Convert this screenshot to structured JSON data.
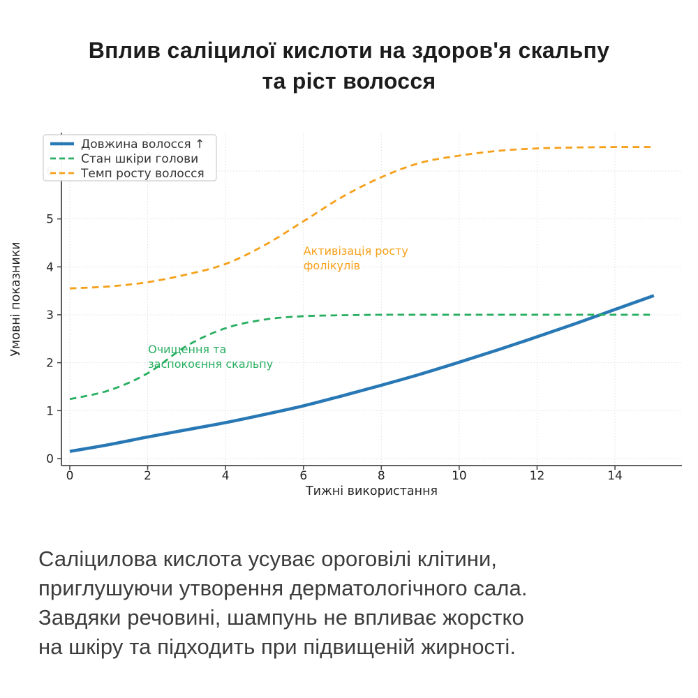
{
  "title": {
    "lines": [
      "Вплив саліцилої кислоти на здоров'я скальпу",
      "та ріст волосся"
    ]
  },
  "description": {
    "lines": [
      "Саліцилова кислота усуває ороговілі клітини,",
      "приглушуючи утворення дерматологічного сала.",
      "Завдяки речовині, шампунь не впливає жорстко",
      "на шкіру та підходить при підвищеній жирності."
    ]
  },
  "chart_data": {
    "type": "line",
    "x": [
      0,
      1,
      2,
      3,
      4,
      5,
      6,
      7,
      8,
      9,
      10,
      11,
      12,
      13,
      14,
      15
    ],
    "series": [
      {
        "name": "Довжина волосся ↑",
        "color": "#2878b5",
        "style": "solid",
        "values": [
          0.15,
          0.29,
          0.45,
          0.6,
          0.75,
          0.92,
          1.1,
          1.31,
          1.53,
          1.76,
          2.01,
          2.27,
          2.54,
          2.82,
          3.11,
          3.4
        ]
      },
      {
        "name": "Стан шкіри голови",
        "color": "#27ae60",
        "style": "dashed",
        "values": [
          1.24,
          1.42,
          1.78,
          2.35,
          2.72,
          2.9,
          2.97,
          2.99,
          3.0,
          3.0,
          3.0,
          3.0,
          3.0,
          3.0,
          3.0,
          3.0
        ]
      },
      {
        "name": "Темп росту волосся",
        "color": "#f6a01a",
        "style": "dashed",
        "values": [
          3.55,
          3.59,
          3.68,
          3.84,
          4.06,
          4.45,
          4.95,
          5.46,
          5.87,
          6.17,
          6.32,
          6.42,
          6.47,
          6.49,
          6.5,
          6.5
        ]
      }
    ],
    "xlabel": "Тижні використання",
    "ylabel": "Умовні показники",
    "xticks": [
      0,
      2,
      4,
      6,
      8,
      10,
      12,
      14
    ],
    "yticks": [
      0,
      1,
      2,
      3,
      4,
      5,
      6
    ],
    "xlim": [
      -0.215,
      15.72
    ],
    "ylim": [
      -0.146,
      6.8
    ],
    "grid": true,
    "legend_position": "upper left",
    "annotations": [
      {
        "lines": [
          "Активізація росту",
          "фолікулів"
        ],
        "x": 6.0,
        "y": 4.25,
        "color": "#f6a01a"
      },
      {
        "lines": [
          "Очищення та",
          "заспокоєння скальпу"
        ],
        "x": 2.01,
        "y": 2.2,
        "color": "#27ae60"
      }
    ],
    "colors": {
      "spine": "#4a4a4a",
      "grid": "#dedede",
      "tick_label": "#262626"
    }
  }
}
